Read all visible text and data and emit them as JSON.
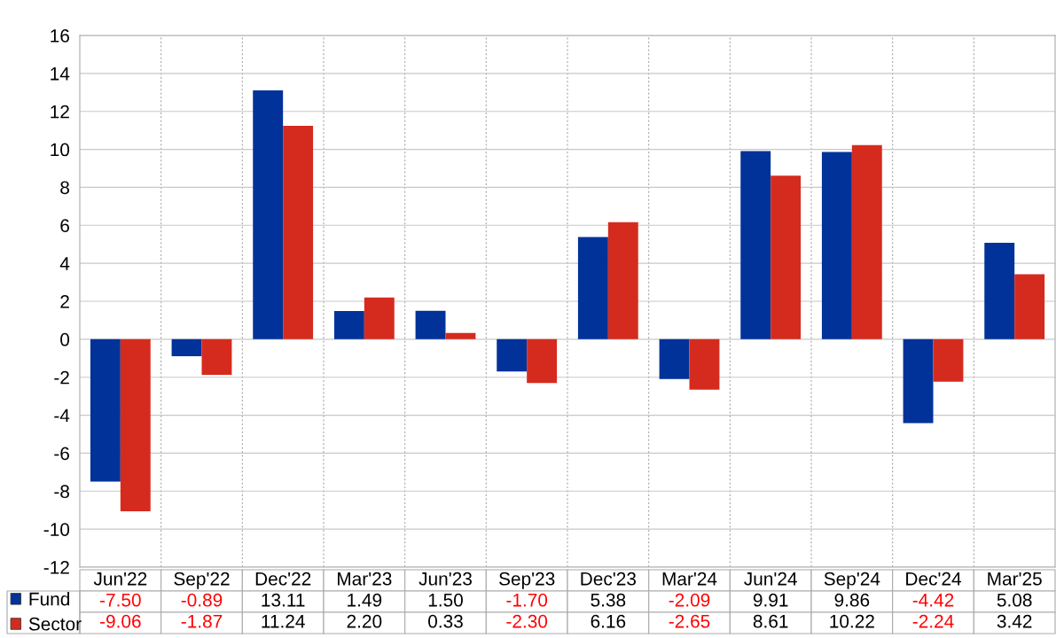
{
  "chart_data": {
    "type": "bar",
    "categories": [
      "Jun'22",
      "Sep'22",
      "Dec'22",
      "Mar'23",
      "Jun'23",
      "Sep'23",
      "Dec'23",
      "Mar'24",
      "Jun'24",
      "Sep'24",
      "Dec'24",
      "Mar'25"
    ],
    "series": [
      {
        "name": "Fund",
        "color": "#003299",
        "values": [
          -7.5,
          -0.89,
          13.11,
          1.49,
          1.5,
          -1.7,
          5.38,
          -2.09,
          9.91,
          9.86,
          -4.42,
          5.08
        ],
        "value_labels": [
          "-7.50",
          "-0.89",
          "13.11",
          "1.49",
          "1.50",
          "-1.70",
          "5.38",
          "-2.09",
          "9.91",
          "9.86",
          "-4.42",
          "5.08"
        ]
      },
      {
        "name": "Sector",
        "color": "#d52b1e",
        "values": [
          -9.06,
          -1.87,
          11.24,
          2.2,
          0.33,
          -2.3,
          6.16,
          -2.65,
          8.61,
          10.22,
          -2.24,
          3.42
        ],
        "value_labels": [
          "-9.06",
          "-1.87",
          "11.24",
          "2.20",
          "0.33",
          "-2.30",
          "6.16",
          "-2.65",
          "8.61",
          "10.22",
          "-2.24",
          "3.42"
        ]
      }
    ],
    "ylim": [
      -12,
      16
    ],
    "yticks": [
      -12,
      -10,
      -8,
      -6,
      -4,
      -2,
      0,
      2,
      4,
      6,
      8,
      10,
      12,
      14,
      16
    ],
    "grid": "y",
    "legend": "bottom left"
  }
}
